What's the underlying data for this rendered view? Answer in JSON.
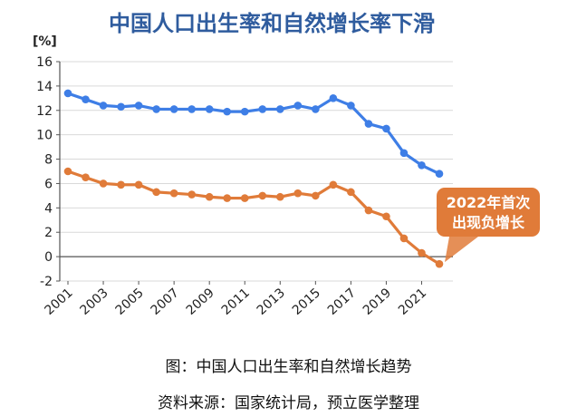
{
  "chart_data": {
    "type": "line",
    "title": "中国人口出生率和自然增长率下滑",
    "ylabel": "[%]",
    "ylim": [
      -2,
      16
    ],
    "yticks": [
      -2,
      0,
      2,
      4,
      6,
      8,
      10,
      12,
      14,
      16
    ],
    "x": [
      2001,
      2002,
      2003,
      2004,
      2005,
      2006,
      2007,
      2008,
      2009,
      2010,
      2011,
      2012,
      2013,
      2014,
      2015,
      2016,
      2017,
      2018,
      2019,
      2020,
      2021,
      2022
    ],
    "xtick_labels": [
      "2001",
      "2003",
      "2005",
      "2007",
      "2009",
      "2011",
      "2013",
      "2015",
      "2017",
      "2019",
      "2021"
    ],
    "grid": "horizontal",
    "series": [
      {
        "color": "#3e7ee6",
        "values": [
          13.4,
          12.9,
          12.4,
          12.3,
          12.4,
          12.1,
          12.1,
          12.1,
          12.1,
          11.9,
          11.9,
          12.1,
          12.1,
          12.4,
          12.1,
          13.0,
          12.4,
          10.9,
          10.5,
          8.5,
          7.5,
          6.8
        ]
      },
      {
        "color": "#e07b39",
        "values": [
          7.0,
          6.5,
          6.0,
          5.9,
          5.9,
          5.3,
          5.2,
          5.1,
          4.9,
          4.8,
          4.8,
          5.0,
          4.9,
          5.2,
          5.0,
          5.9,
          5.3,
          3.8,
          3.3,
          1.5,
          0.3,
          -0.6
        ]
      }
    ],
    "annotation": {
      "lines": [
        "2022年首次",
        "出现负增长"
      ],
      "color": "#e07b39"
    }
  },
  "captions": {
    "figure": "图：中国人口出生率和自然增长趋势",
    "source": "资料来源：国家统计局，预立医学整理"
  },
  "colors": {
    "title": "#2f5c9e",
    "axis": "#555555",
    "grid": "#d9d9d9"
  }
}
